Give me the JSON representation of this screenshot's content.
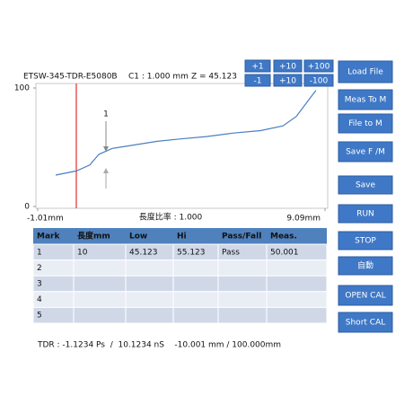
{
  "header": {
    "device": "ETSW-345-TDR-E5080B",
    "cursor": "C1 : 1.000 mm",
    "impedance": "Z = 45.123"
  },
  "step_buttons": [
    "+1",
    "+10",
    "+100",
    "-1",
    "+10",
    "-100"
  ],
  "side_buttons": [
    "Load File",
    "Meas To M",
    "File  to M",
    "Save F /M",
    "Save",
    "RUN",
    "STOP",
    "自動",
    "OPEN CAL",
    "Short CAL"
  ],
  "chart": {
    "type": "line",
    "x": [
      -0.38,
      0.35,
      0.82,
      1.14,
      1.61,
      2.4,
      3.19,
      3.98,
      4.92,
      5.87,
      6.82,
      7.61,
      8.08,
      8.55,
      8.77
    ],
    "values": [
      26.5,
      30,
      35,
      44,
      49,
      52,
      55,
      57,
      59,
      62,
      64,
      68,
      76,
      91,
      98
    ],
    "color": "#4a7fc1",
    "xlim": [
      -1.01,
      9.09
    ],
    "xticks": [
      {
        "value": -1.01,
        "label": "-1.01mm"
      },
      {
        "value": 9.09,
        "label": "9.09mm"
      }
    ],
    "ylim": [
      0,
      100
    ],
    "yticks": [
      0,
      100
    ],
    "marker_label": "1",
    "ratio": "長度比率 : 1.000"
  },
  "table": {
    "columns": [
      "Mark",
      "長度mm",
      "Low",
      "Hi",
      "Pass/Fall",
      "Meas."
    ],
    "rows": [
      [
        "1",
        "10",
        "45.123",
        "55.123",
        "Pass",
        "50.001"
      ],
      [
        "2"
      ],
      [
        "3"
      ],
      [
        "4"
      ],
      [
        "5"
      ]
    ]
  },
  "footer": "TDR : -1.1234 Ps  /  10.1234 nS    -10.001 mm / 100.000mm"
}
